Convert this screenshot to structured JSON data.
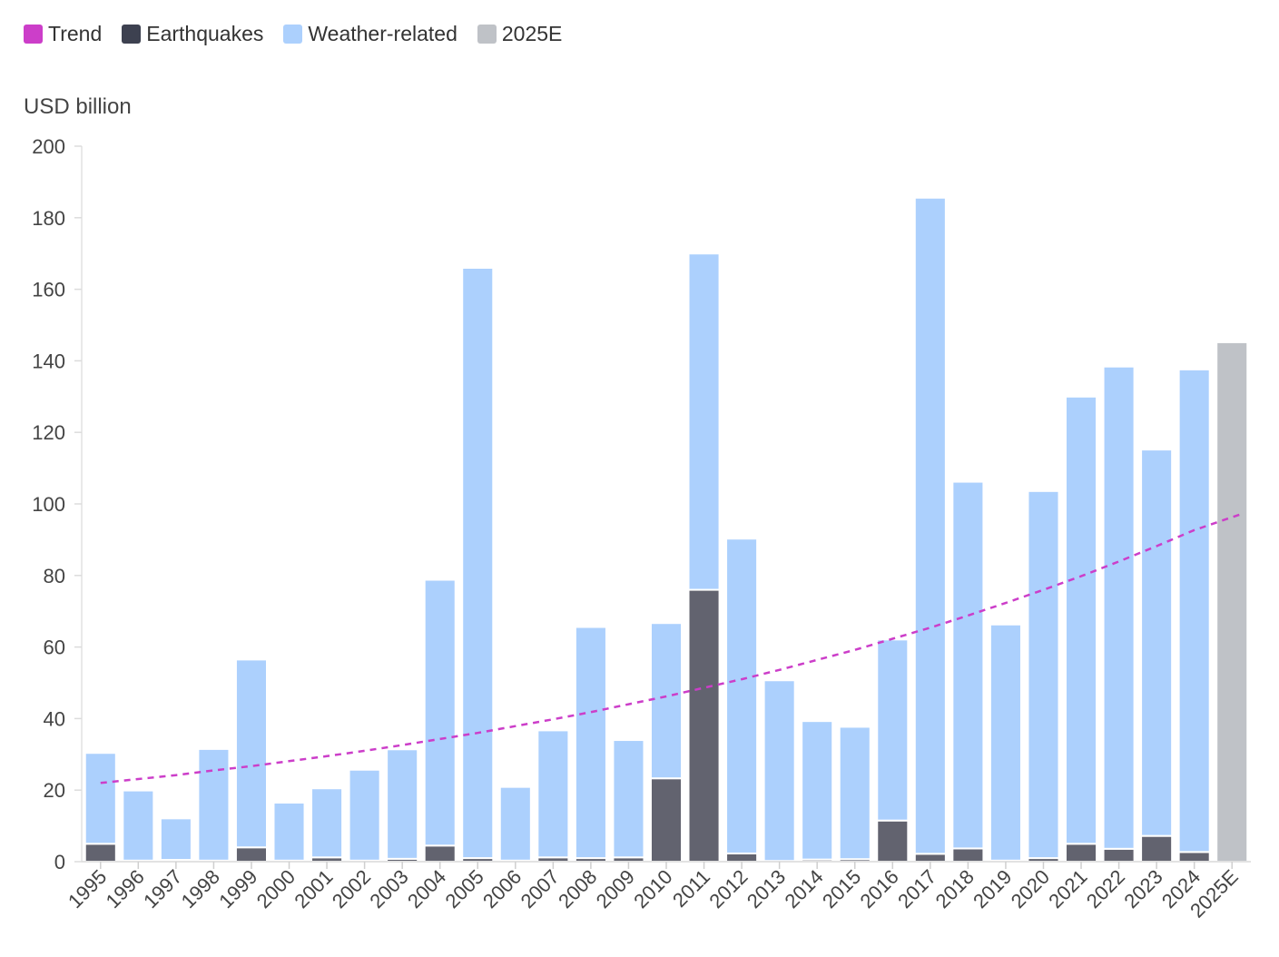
{
  "legend": [
    {
      "label": "Trend",
      "color": "#cc3ec9"
    },
    {
      "label": "Earthquakes",
      "color": "#3d4150"
    },
    {
      "label": "Weather-related",
      "color": "#acd0fd"
    },
    {
      "label": "2025E",
      "color": "#bfc2c7"
    }
  ],
  "chart_data": {
    "type": "bar",
    "stacked": true,
    "ylabel": "USD billion",
    "ylim": [
      0,
      200
    ],
    "yticks": [
      0,
      20,
      40,
      60,
      80,
      100,
      120,
      140,
      160,
      180,
      200
    ],
    "categories": [
      "1995",
      "1996",
      "1997",
      "1998",
      "1999",
      "2000",
      "2001",
      "2002",
      "2003",
      "2004",
      "2005",
      "2006",
      "2007",
      "2008",
      "2009",
      "2010",
      "2011",
      "2012",
      "2013",
      "2014",
      "2015",
      "2016",
      "2017",
      "2018",
      "2019",
      "2020",
      "2021",
      "2022",
      "2023",
      "2024",
      "2025E"
    ],
    "series": [
      {
        "name": "Earthquakes",
        "color": "#62636f",
        "values": [
          5,
          0.3,
          0.5,
          0.3,
          4,
          0.3,
          1.2,
          0.3,
          0.8,
          4.5,
          1,
          0.3,
          1.2,
          1,
          1.2,
          23.3,
          76,
          2.3,
          0.2,
          0.6,
          0.7,
          11.5,
          2.2,
          3.7,
          0.3,
          1,
          5,
          3.6,
          7.2,
          2.7,
          0
        ]
      },
      {
        "name": "Weather-related",
        "color": "#acd0fd",
        "values": [
          25.4,
          19.6,
          11.6,
          31.2,
          52.5,
          16.2,
          19.3,
          25.4,
          30.6,
          74.3,
          165,
          20.6,
          35.5,
          64.6,
          32.8,
          43.4,
          94,
          88,
          50.5,
          38.7,
          37,
          50.6,
          183.4,
          102.5,
          66,
          102.6,
          125,
          134.8,
          108,
          134.9,
          0
        ]
      },
      {
        "name": "2025E",
        "color": "#bfc2c7",
        "values": [
          0,
          0,
          0,
          0,
          0,
          0,
          0,
          0,
          0,
          0,
          0,
          0,
          0,
          0,
          0,
          0,
          0,
          0,
          0,
          0,
          0,
          0,
          0,
          0,
          0,
          0,
          0,
          0,
          0,
          0,
          145.2
        ]
      }
    ],
    "trend": {
      "name": "Trend",
      "color": "#cc3ec9",
      "values": [
        22,
        23.1,
        24.2,
        25.5,
        26.7,
        28.1,
        29.5,
        31,
        32.6,
        34.3,
        36,
        37.9,
        39.8,
        41.8,
        44,
        46.2,
        48.6,
        51,
        53.6,
        56.4,
        59.2,
        62.3,
        65.4,
        68.8,
        72.3,
        76,
        79.8,
        83.9,
        88.2,
        92.7,
        97.4
      ]
    },
    "grid": false,
    "legend_position": "top-left"
  }
}
